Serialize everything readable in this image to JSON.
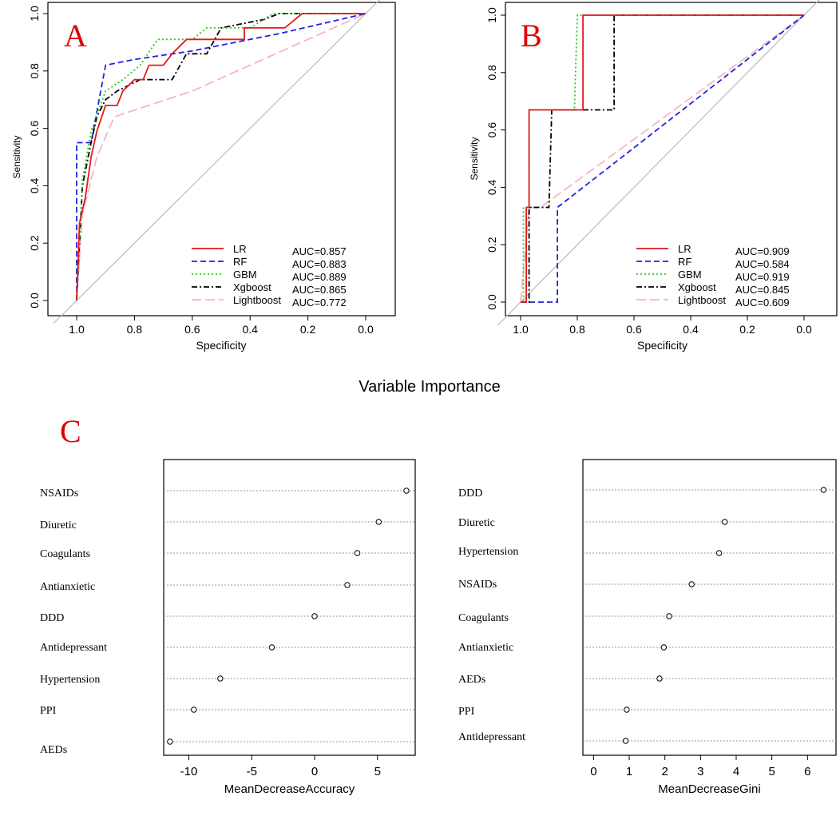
{
  "figure_title": "Variable Importance",
  "chart_data": [
    {
      "panel": "A",
      "type": "line",
      "xlabel": "Specificity",
      "ylabel": "Sensitivity",
      "xlim": [
        1.0,
        0.0
      ],
      "ylim": [
        0.0,
        1.0
      ],
      "xticks": [
        "1.0",
        "0.8",
        "0.6",
        "0.4",
        "0.2",
        "0.0"
      ],
      "yticks": [
        "0.0",
        "0.2",
        "0.4",
        "0.6",
        "0.8",
        "1.0"
      ],
      "legend_position": "bottom-right",
      "series": [
        {
          "name": "LR",
          "auc": "AUC=0.857",
          "color": "#e41a1c",
          "dash": "solid",
          "points": [
            [
              1,
              0
            ],
            [
              0.99,
              0.27
            ],
            [
              0.97,
              0.36
            ],
            [
              0.95,
              0.5
            ],
            [
              0.93,
              0.59
            ],
            [
              0.9,
              0.68
            ],
            [
              0.86,
              0.68
            ],
            [
              0.84,
              0.73
            ],
            [
              0.8,
              0.77
            ],
            [
              0.77,
              0.77
            ],
            [
              0.75,
              0.82
            ],
            [
              0.7,
              0.82
            ],
            [
              0.67,
              0.86
            ],
            [
              0.62,
              0.91
            ],
            [
              0.42,
              0.91
            ],
            [
              0.42,
              0.95
            ],
            [
              0.28,
              0.95
            ],
            [
              0.22,
              1.0
            ],
            [
              0,
              1
            ]
          ]
        },
        {
          "name": "RF",
          "auc": "AUC=0.883",
          "color": "#2222dd",
          "dash": "dashed",
          "points": [
            [
              1,
              0
            ],
            [
              1,
              0.55
            ],
            [
              0.95,
              0.55
            ],
            [
              0.9,
              0.82
            ],
            [
              0.8,
              0.84
            ],
            [
              0.6,
              0.87
            ],
            [
              0.3,
              0.93
            ],
            [
              0,
              1
            ]
          ]
        },
        {
          "name": "GBM",
          "auc": "AUC=0.889",
          "color": "#22cc22",
          "dash": "dotted",
          "points": [
            [
              1,
              0
            ],
            [
              0.98,
              0.42
            ],
            [
              0.95,
              0.59
            ],
            [
              0.9,
              0.73
            ],
            [
              0.84,
              0.77
            ],
            [
              0.78,
              0.82
            ],
            [
              0.72,
              0.91
            ],
            [
              0.6,
              0.91
            ],
            [
              0.55,
              0.95
            ],
            [
              0.4,
              0.95
            ],
            [
              0.32,
              1.0
            ],
            [
              0,
              1
            ]
          ]
        },
        {
          "name": "Xgboost",
          "auc": "AUC=0.865",
          "color": "#000000",
          "dash": "dashdot",
          "points": [
            [
              1,
              0
            ],
            [
              0.98,
              0.4
            ],
            [
              0.95,
              0.55
            ],
            [
              0.93,
              0.64
            ],
            [
              0.9,
              0.7
            ],
            [
              0.86,
              0.73
            ],
            [
              0.78,
              0.77
            ],
            [
              0.67,
              0.77
            ],
            [
              0.62,
              0.86
            ],
            [
              0.55,
              0.86
            ],
            [
              0.5,
              0.95
            ],
            [
              0.35,
              0.98
            ],
            [
              0.3,
              1.0
            ],
            [
              0,
              1
            ]
          ]
        },
        {
          "name": "Lightboost",
          "auc": "AUC=0.772",
          "color": "#f4b6c2",
          "dash": "longdash",
          "points": [
            [
              1,
              0
            ],
            [
              0.98,
              0.3
            ],
            [
              0.93,
              0.5
            ],
            [
              0.87,
              0.64
            ],
            [
              0.6,
              0.73
            ],
            [
              0,
              1
            ]
          ]
        }
      ]
    },
    {
      "panel": "B",
      "type": "line",
      "xlabel": "Specificity",
      "ylabel": "Sensitivity",
      "xlim": [
        1.0,
        0.0
      ],
      "ylim": [
        0.0,
        1.0
      ],
      "xticks": [
        "1.0",
        "0.8",
        "0.6",
        "0.4",
        "0.2",
        "0.0"
      ],
      "yticks": [
        "0.0",
        "0.2",
        "0.4",
        "0.6",
        "0.8",
        "1.0"
      ],
      "legend_position": "bottom-right",
      "series": [
        {
          "name": "LR",
          "auc": "AUC=0.909",
          "color": "#e41a1c",
          "dash": "solid",
          "points": [
            [
              1,
              0
            ],
            [
              0.98,
              0.0
            ],
            [
              0.98,
              0.33
            ],
            [
              0.97,
              0.33
            ],
            [
              0.97,
              0.67
            ],
            [
              0.78,
              0.67
            ],
            [
              0.78,
              1.0
            ],
            [
              0,
              1
            ]
          ]
        },
        {
          "name": "RF",
          "auc": "AUC=0.584",
          "color": "#2222dd",
          "dash": "dashed",
          "points": [
            [
              1,
              0
            ],
            [
              0.97,
              0.0
            ],
            [
              0.96,
              0.0
            ],
            [
              0.87,
              0.0
            ],
            [
              0.87,
              0.33
            ],
            [
              0,
              1
            ]
          ]
        },
        {
          "name": "GBM",
          "auc": "AUC=0.919",
          "color": "#22cc22",
          "dash": "dotted",
          "points": [
            [
              1,
              0
            ],
            [
              0.99,
              0.0
            ],
            [
              0.99,
              0.33
            ],
            [
              0.97,
              0.33
            ],
            [
              0.97,
              0.67
            ],
            [
              0.81,
              0.67
            ],
            [
              0.8,
              1.0
            ],
            [
              0,
              1
            ]
          ]
        },
        {
          "name": "Xgboost",
          "auc": "AUC=0.845",
          "color": "#000000",
          "dash": "dashdot",
          "points": [
            [
              1,
              0
            ],
            [
              0.97,
              0.0
            ],
            [
              0.97,
              0.33
            ],
            [
              0.9,
              0.33
            ],
            [
              0.89,
              0.67
            ],
            [
              0.67,
              0.67
            ],
            [
              0.67,
              1.0
            ],
            [
              0,
              1
            ]
          ]
        },
        {
          "name": "Lightboost",
          "auc": "AUC=0.609",
          "color": "#f4b6c2",
          "dash": "longdash",
          "points": [
            [
              1,
              0
            ],
            [
              0.97,
              0.33
            ],
            [
              0.93,
              0.33
            ],
            [
              0,
              1
            ]
          ]
        }
      ]
    },
    {
      "panel": "C",
      "type": "scatter",
      "xlabel": "MeanDecreaseAccuracy",
      "xlim": [
        -12,
        8
      ],
      "xticks": [
        -10,
        -5,
        0,
        5
      ],
      "categories": [
        "NSAIDs",
        "Diuretic",
        "Coagulants",
        "Antianxietic",
        "DDD",
        "Antidepressant",
        "Hypertension",
        "PPI",
        "AEDs"
      ],
      "values": [
        7.3,
        5.1,
        3.4,
        2.6,
        0.0,
        -3.4,
        -7.5,
        -9.6,
        -11.5
      ]
    },
    {
      "panel": "C",
      "type": "scatter",
      "xlabel": "MeanDecreaseGini",
      "xlim": [
        -0.3,
        6.8
      ],
      "xticks": [
        0,
        1,
        2,
        3,
        4,
        5,
        6
      ],
      "categories": [
        "DDD",
        "Diuretic",
        "Hypertension",
        "NSAIDs",
        "Coagulants",
        "Antianxietic",
        "AEDs",
        "PPI",
        "Antidepressant"
      ],
      "values": [
        6.45,
        3.68,
        3.52,
        2.75,
        2.12,
        1.97,
        1.85,
        0.93,
        0.9
      ]
    }
  ]
}
